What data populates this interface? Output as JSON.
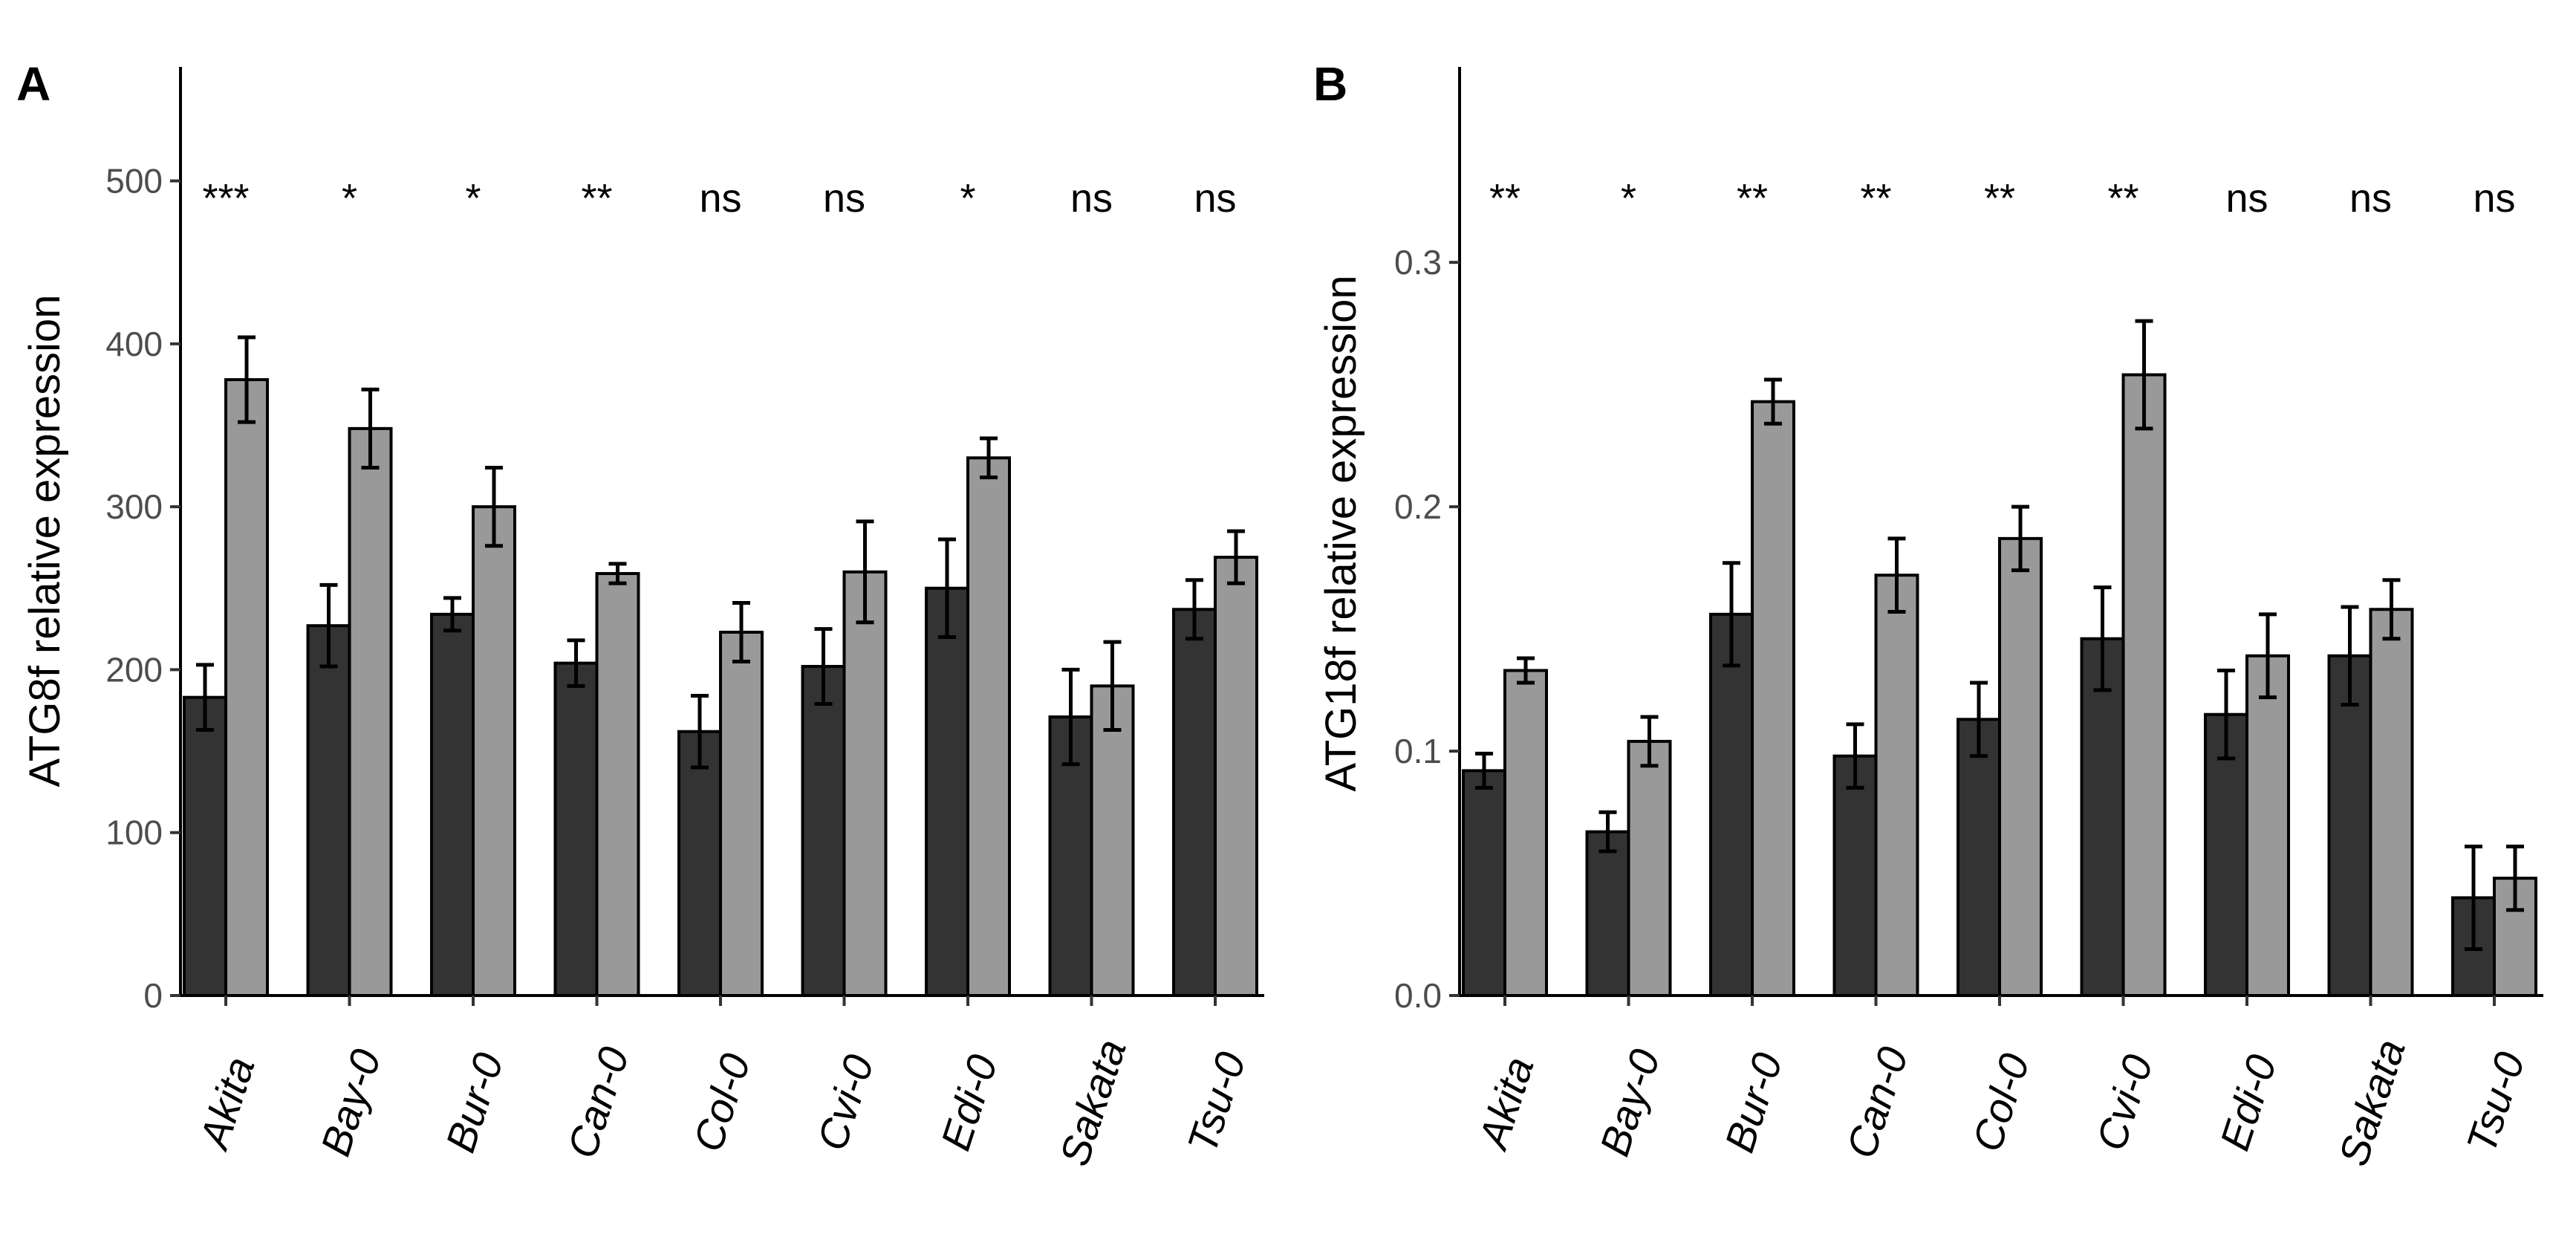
{
  "chart_data": [
    {
      "panel": "A",
      "type": "bar",
      "ylabel": "ATG8f relative expression",
      "xlabel": "",
      "ylim": [
        0,
        570
      ],
      "yticks": [
        0,
        100,
        200,
        300,
        400,
        500
      ],
      "categories": [
        "Akita",
        "Bay-0",
        "Bur-0",
        "Can-0",
        "Col-0",
        "Cvi-0",
        "Edi-0",
        "Sakata",
        "Tsu-0"
      ],
      "series": [
        {
          "name": "dark",
          "color": "#333333",
          "values": [
            183,
            227,
            234,
            204,
            162,
            202,
            250,
            171,
            237
          ],
          "errors": [
            20,
            25,
            10,
            14,
            22,
            23,
            30,
            29,
            18
          ]
        },
        {
          "name": "light",
          "color": "#999999",
          "values": [
            378,
            348,
            300,
            259,
            223,
            260,
            330,
            190,
            269
          ],
          "errors": [
            26,
            24,
            24,
            6,
            18,
            31,
            12,
            27,
            16
          ]
        }
      ],
      "significance": [
        "***",
        "*",
        "*",
        "**",
        "ns",
        "ns",
        "*",
        "ns",
        "ns"
      ]
    },
    {
      "panel": "B",
      "type": "bar",
      "ylabel": "ATG18f relative expression",
      "xlabel": "",
      "ylim": [
        0,
        0.38
      ],
      "yticks": [
        0.0,
        0.1,
        0.2,
        0.3
      ],
      "ytick_labels": [
        "0.0",
        "0.1",
        "0.2",
        "0.3"
      ],
      "categories": [
        "Akita",
        "Bay-0",
        "Bur-0",
        "Can-0",
        "Col-0",
        "Cvi-0",
        "Edi-0",
        "Sakata",
        "Tsu-0"
      ],
      "series": [
        {
          "name": "dark",
          "color": "#333333",
          "values": [
            0.092,
            0.067,
            0.156,
            0.098,
            0.113,
            0.146,
            0.115,
            0.139,
            0.04
          ],
          "errors": [
            0.007,
            0.008,
            0.021,
            0.013,
            0.015,
            0.021,
            0.018,
            0.02,
            0.021
          ]
        },
        {
          "name": "light",
          "color": "#999999",
          "values": [
            0.133,
            0.104,
            0.243,
            0.172,
            0.187,
            0.254,
            0.139,
            0.158,
            0.048
          ],
          "errors": [
            0.005,
            0.01,
            0.009,
            0.015,
            0.013,
            0.022,
            0.017,
            0.012,
            0.013
          ]
        }
      ],
      "significance": [
        "**",
        "*",
        "**",
        "**",
        "**",
        "**",
        "ns",
        "ns",
        "ns"
      ]
    }
  ]
}
